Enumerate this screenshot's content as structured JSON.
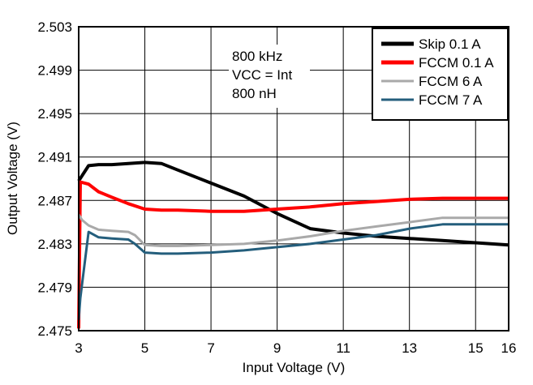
{
  "chart_data": {
    "type": "line",
    "xlabel": "Input Voltage (V)",
    "ylabel": "Output Voltage (V)",
    "xlim": [
      3,
      16
    ],
    "ylim": [
      2.475,
      2.503
    ],
    "x_ticks": [
      3,
      5,
      7,
      9,
      11,
      13,
      15,
      16
    ],
    "y_ticks": [
      2.475,
      2.479,
      2.483,
      2.487,
      2.491,
      2.495,
      2.499,
      2.503
    ],
    "x_tick_labels": [
      "3",
      "5",
      "7",
      "9",
      "11",
      "13",
      "15",
      "16"
    ],
    "y_tick_labels": [
      "2.475",
      "2.479",
      "2.483",
      "2.487",
      "2.491",
      "2.495",
      "2.499",
      "2.503"
    ],
    "grid": true,
    "legend_position": "top-right",
    "annotation": [
      "800 kHz",
      "VCC = Int",
      "800 nH"
    ],
    "series": [
      {
        "name": "Skip 0.1 A",
        "color": "#000000",
        "width": 4,
        "x": [
          3.0,
          3.3,
          3.6,
          4.0,
          4.5,
          5.0,
          5.5,
          6.0,
          7.0,
          8.0,
          9.0,
          10.0,
          11.0,
          12.0,
          13.0,
          14.0,
          15.0,
          16.0
        ],
        "y": [
          2.4888,
          2.4902,
          2.4903,
          2.4903,
          2.4904,
          2.4905,
          2.4904,
          2.4898,
          2.4886,
          2.4874,
          2.4858,
          2.4844,
          2.484,
          2.4837,
          2.4835,
          2.4833,
          2.4831,
          2.4829
        ]
      },
      {
        "name": "FCCM 0.1 A",
        "color": "#ff0000",
        "width": 4,
        "x": [
          3.0,
          3.05,
          3.3,
          3.6,
          4.0,
          4.5,
          5.0,
          5.5,
          6.0,
          7.0,
          8.0,
          9.0,
          10.0,
          11.0,
          12.0,
          13.0,
          14.0,
          15.0,
          16.0
        ],
        "y": [
          2.4752,
          2.4887,
          2.4885,
          2.4878,
          2.4873,
          2.4867,
          2.4862,
          2.4861,
          2.4861,
          2.486,
          2.486,
          2.4862,
          2.4864,
          2.4867,
          2.4869,
          2.4871,
          2.4872,
          2.4872,
          2.4872
        ]
      },
      {
        "name": "FCCM 6 A",
        "color": "#a9a9a9",
        "width": 3,
        "x": [
          3.0,
          3.1,
          3.3,
          3.6,
          4.0,
          4.5,
          4.7,
          5.0,
          5.5,
          6.0,
          7.0,
          8.0,
          9.0,
          10.0,
          11.0,
          12.0,
          13.0,
          14.0,
          15.0,
          16.0
        ],
        "y": [
          2.4857,
          2.4852,
          2.4847,
          2.4843,
          2.4842,
          2.4841,
          2.4838,
          2.4829,
          2.4828,
          2.4828,
          2.4829,
          2.483,
          2.4833,
          2.4837,
          2.4842,
          2.4846,
          2.485,
          2.4854,
          2.4854,
          2.4854
        ]
      },
      {
        "name": "FCCM 7 A",
        "color": "#245e7c",
        "width": 3,
        "x": [
          3.0,
          3.05,
          3.3,
          3.6,
          4.0,
          4.5,
          4.7,
          5.0,
          5.5,
          6.0,
          7.0,
          8.0,
          9.0,
          10.0,
          11.0,
          12.0,
          13.0,
          14.0,
          15.0,
          16.0
        ],
        "y": [
          2.476,
          2.478,
          2.4841,
          2.4836,
          2.4835,
          2.4834,
          2.483,
          2.4822,
          2.4821,
          2.4821,
          2.4822,
          2.4824,
          2.4827,
          2.483,
          2.4834,
          2.4838,
          2.4844,
          2.4848,
          2.4848,
          2.4848
        ]
      }
    ]
  }
}
